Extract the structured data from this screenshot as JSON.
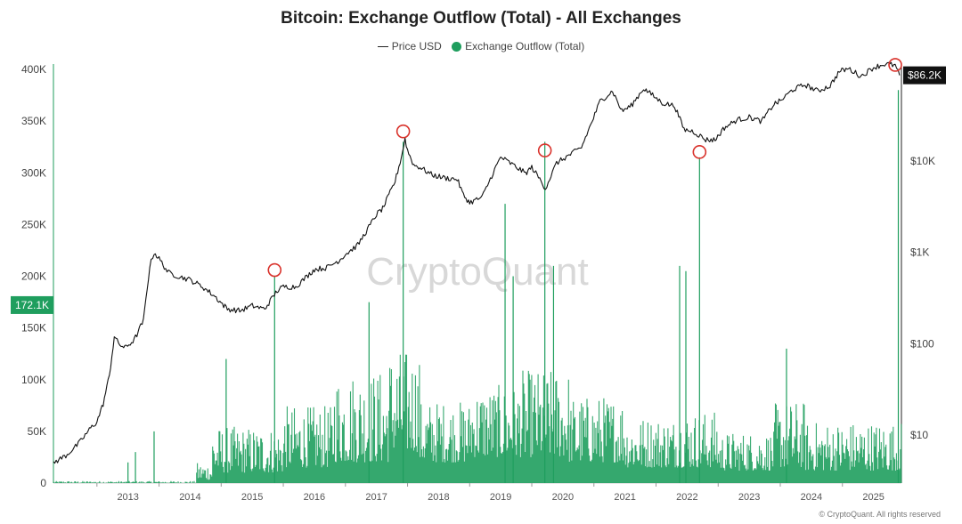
{
  "chart_data": {
    "type": "line",
    "title": "Bitcoin: Exchange Outflow (Total) - All Exchanges",
    "legend": [
      {
        "name": "Price USD",
        "marker": "line",
        "color": "#222222"
      },
      {
        "name": "Exchange Outflow (Total)",
        "marker": "dot",
        "color": "#1f9e5e"
      }
    ],
    "legend_position": "top-center",
    "grid": false,
    "x_range": [
      2012.3,
      2025.95
    ],
    "x_ticks": [
      "2013",
      "2014",
      "2015",
      "2016",
      "2017",
      "2018",
      "2019",
      "2020",
      "2021",
      "2022",
      "2023",
      "2024",
      "2025"
    ],
    "y_left": {
      "range": [
        0,
        400000
      ],
      "tick_labels": [
        "0",
        "50K",
        "100K",
        "150K",
        "200K",
        "250K",
        "300K",
        "350K",
        "400K"
      ],
      "ticks": [
        0,
        50000,
        100000,
        150000,
        200000,
        250000,
        300000,
        350000,
        400000
      ]
    },
    "y_right": {
      "scale": "log",
      "range": [
        3,
        100000
      ],
      "tick_labels": [
        "$10",
        "$100",
        "$1K",
        "$10K"
      ],
      "ticks": [
        10,
        100,
        1000,
        10000
      ]
    },
    "current_labels": {
      "left": "172.1K",
      "right": "$86.2K"
    },
    "watermark": "CryptoQuant",
    "copyright": "© CryptoQuant. All rights reserved",
    "series": [
      {
        "name": "Price USD",
        "axis": "right",
        "x": [
          2012.3,
          2012.5,
          2012.7,
          2012.9,
          2013.0,
          2013.1,
          2013.2,
          2013.28,
          2013.35,
          2013.45,
          2013.6,
          2013.75,
          2013.85,
          2013.92,
          2014.0,
          2014.15,
          2014.3,
          2014.5,
          2014.7,
          2014.9,
          2015.0,
          2015.1,
          2015.3,
          2015.5,
          2015.7,
          2015.9,
          2016.0,
          2016.2,
          2016.4,
          2016.5,
          2016.7,
          2016.9,
          2017.0,
          2017.2,
          2017.4,
          2017.5,
          2017.6,
          2017.7,
          2017.8,
          2017.9,
          2017.96,
          2018.0,
          2018.1,
          2018.2,
          2018.4,
          2018.6,
          2018.8,
          2018.9,
          2019.0,
          2019.2,
          2019.4,
          2019.5,
          2019.7,
          2019.9,
          2020.0,
          2020.15,
          2020.22,
          2020.4,
          2020.6,
          2020.8,
          2020.95,
          2021.1,
          2021.3,
          2021.45,
          2021.6,
          2021.8,
          2021.9,
          2022.1,
          2022.3,
          2022.45,
          2022.6,
          2022.8,
          2022.95,
          2023.1,
          2023.3,
          2023.5,
          2023.7,
          2023.9,
          2024.0,
          2024.2,
          2024.4,
          2024.6,
          2024.8,
          2024.95,
          2025.1,
          2025.3,
          2025.5,
          2025.7,
          2025.85,
          2025.92
        ],
        "values": [
          5,
          6,
          8,
          12,
          14,
          22,
          45,
          120,
          100,
          90,
          110,
          180,
          700,
          1000,
          850,
          600,
          550,
          500,
          420,
          330,
          280,
          240,
          230,
          260,
          240,
          380,
          420,
          420,
          560,
          650,
          680,
          820,
          950,
          1200,
          2000,
          2600,
          3000,
          4200,
          6000,
          11000,
          17500,
          13000,
          9000,
          8500,
          7000,
          6500,
          6300,
          4200,
          3500,
          4000,
          8000,
          11000,
          9000,
          7300,
          8500,
          6000,
          5000,
          9500,
          11500,
          14000,
          25000,
          45000,
          58000,
          35000,
          40000,
          62000,
          55000,
          43000,
          40000,
          22000,
          21000,
          17000,
          17000,
          23000,
          28000,
          30000,
          27000,
          42000,
          45000,
          60000,
          68000,
          58000,
          66000,
          95000,
          102000,
          84000,
          105000,
          115000,
          110000,
          86200
        ]
      },
      {
        "name": "Exchange Outflow (Total)",
        "axis": "left",
        "baseline_segments": [
          {
            "x0": 2012.3,
            "x1": 2014.6,
            "low": 0,
            "high": 2000
          },
          {
            "x0": 2014.6,
            "x1": 2014.85,
            "low": 3000,
            "high": 20000
          },
          {
            "x0": 2014.85,
            "x1": 2016.0,
            "low": 10000,
            "high": 55000
          },
          {
            "x0": 2016.0,
            "x1": 2016.8,
            "low": 15000,
            "high": 75000
          },
          {
            "x0": 2016.8,
            "x1": 2017.7,
            "low": 20000,
            "high": 110000
          },
          {
            "x0": 2017.7,
            "x1": 2018.2,
            "low": 30000,
            "high": 130000
          },
          {
            "x0": 2018.2,
            "x1": 2019.0,
            "low": 20000,
            "high": 80000
          },
          {
            "x0": 2019.0,
            "x1": 2019.8,
            "low": 25000,
            "high": 95000
          },
          {
            "x0": 2019.8,
            "x1": 2020.6,
            "low": 25000,
            "high": 110000
          },
          {
            "x0": 2020.6,
            "x1": 2021.5,
            "low": 20000,
            "high": 85000
          },
          {
            "x0": 2021.5,
            "x1": 2022.3,
            "low": 15000,
            "high": 65000
          },
          {
            "x0": 2022.3,
            "x1": 2023.0,
            "low": 15000,
            "high": 70000
          },
          {
            "x0": 2023.0,
            "x1": 2023.9,
            "low": 12000,
            "high": 50000
          },
          {
            "x0": 2023.9,
            "x1": 2024.4,
            "low": 15000,
            "high": 80000
          },
          {
            "x0": 2024.4,
            "x1": 2025.95,
            "low": 12000,
            "high": 60000
          }
        ],
        "spikes": [
          {
            "x": 2013.5,
            "value": 20000
          },
          {
            "x": 2013.62,
            "value": 30000
          },
          {
            "x": 2013.92,
            "value": 50000
          },
          {
            "x": 2015.08,
            "value": 120000
          },
          {
            "x": 2015.86,
            "value": 200000
          },
          {
            "x": 2017.38,
            "value": 175000
          },
          {
            "x": 2017.93,
            "value": 330000
          },
          {
            "x": 2019.57,
            "value": 270000
          },
          {
            "x": 2019.7,
            "value": 200000
          },
          {
            "x": 2020.21,
            "value": 330000
          },
          {
            "x": 2020.35,
            "value": 210000
          },
          {
            "x": 2022.38,
            "value": 210000
          },
          {
            "x": 2022.48,
            "value": 205000
          },
          {
            "x": 2022.7,
            "value": 315000
          },
          {
            "x": 2024.1,
            "value": 130000
          },
          {
            "x": 2025.9,
            "value": 380000
          }
        ]
      }
    ],
    "annotations": [
      {
        "type": "circle",
        "x": 2015.86,
        "price": 640
      },
      {
        "type": "circle",
        "x": 2017.93,
        "price": 21000
      },
      {
        "type": "circle",
        "x": 2020.21,
        "price": 13000
      },
      {
        "type": "circle",
        "x": 2022.7,
        "price": 12500
      },
      {
        "type": "circle",
        "x": 2025.85,
        "price": 112000
      }
    ]
  }
}
